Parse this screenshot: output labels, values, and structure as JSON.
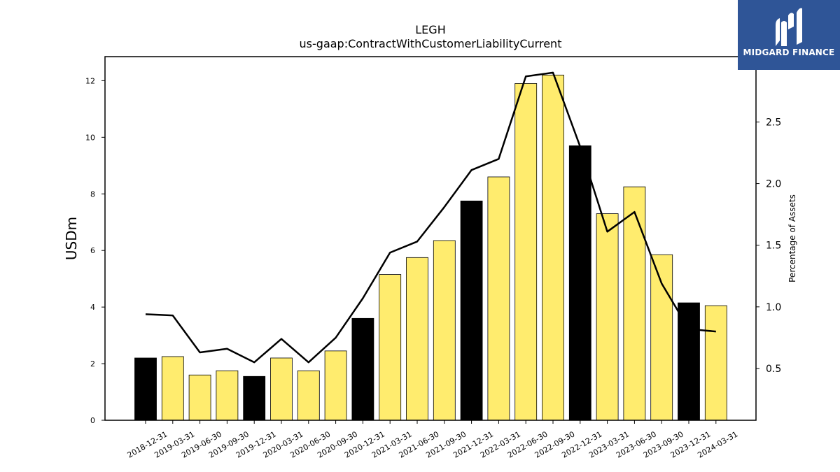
{
  "chart_data": {
    "type": "bar",
    "title": "LEGH",
    "subtitle": "us-gaap:ContractWithCustomerLiabilityCurrent",
    "ylabel": "USDm",
    "y2label": "Percentage of Assets",
    "ylim": [
      0,
      12.85
    ],
    "y2lim": [
      0.08,
      3.03
    ],
    "yticks": [
      "0",
      "2",
      "4",
      "6",
      "8",
      "10",
      "12"
    ],
    "y2ticks": [
      "0.5",
      "1.0",
      "1.5",
      "2.0",
      "2.5"
    ],
    "categories": [
      "2018-12-31",
      "2019-03-31",
      "2019-06-30",
      "2019-09-30",
      "2019-12-31",
      "2020-03-31",
      "2020-06-30",
      "2020-09-30",
      "2020-12-31",
      "2021-03-31",
      "2021-06-30",
      "2021-09-30",
      "2021-12-31",
      "2022-03-31",
      "2022-06-30",
      "2022-09-30",
      "2022-12-31",
      "2023-03-31",
      "2023-06-30",
      "2023-09-30",
      "2023-12-31",
      "2024-03-31"
    ],
    "series": [
      {
        "type": "bar",
        "values": [
          2.2,
          2.25,
          1.6,
          1.75,
          1.55,
          2.2,
          1.75,
          2.45,
          3.6,
          5.15,
          5.75,
          6.35,
          7.75,
          8.6,
          11.9,
          12.2,
          9.7,
          7.3,
          8.25,
          5.85,
          4.15,
          4.05
        ],
        "colors": [
          "#000000",
          "#ffec6e",
          "#ffec6e",
          "#ffec6e",
          "#000000",
          "#ffec6e",
          "#ffec6e",
          "#ffec6e",
          "#000000",
          "#ffec6e",
          "#ffec6e",
          "#ffec6e",
          "#000000",
          "#ffec6e",
          "#ffec6e",
          "#ffec6e",
          "#000000",
          "#ffec6e",
          "#ffec6e",
          "#ffec6e",
          "#000000",
          "#ffec6e"
        ]
      },
      {
        "type": "line",
        "axis": "right",
        "values": [
          0.94,
          0.93,
          0.63,
          0.66,
          0.55,
          0.74,
          0.55,
          0.75,
          1.07,
          1.44,
          1.53,
          1.81,
          2.11,
          2.2,
          2.87,
          2.9,
          2.3,
          1.61,
          1.77,
          1.19,
          0.82,
          0.8
        ]
      }
    ],
    "grid": false,
    "legend": "none"
  },
  "logo": {
    "text": "MIDGARD FINANCE",
    "background": "#2f5597"
  }
}
